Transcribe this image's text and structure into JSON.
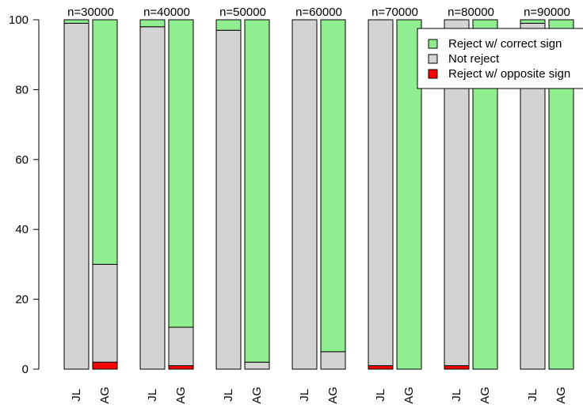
{
  "chart_data": {
    "type": "bar",
    "stacked": true,
    "title": "",
    "xlabel": "",
    "ylabel": "",
    "ylim": [
      0,
      100
    ],
    "yticks": [
      0,
      20,
      40,
      60,
      80,
      100
    ],
    "groups": [
      {
        "label": "n=30000",
        "bars": [
          {
            "label": "JL",
            "reject_opposite": 0,
            "not_reject": 99,
            "reject_correct": 1
          },
          {
            "label": "AG",
            "reject_opposite": 2,
            "not_reject": 28,
            "reject_correct": 70
          }
        ]
      },
      {
        "label": "n=40000",
        "bars": [
          {
            "label": "JL",
            "reject_opposite": 0,
            "not_reject": 98,
            "reject_correct": 2
          },
          {
            "label": "AG",
            "reject_opposite": 1,
            "not_reject": 11,
            "reject_correct": 88
          }
        ]
      },
      {
        "label": "n=50000",
        "bars": [
          {
            "label": "JL",
            "reject_opposite": 0,
            "not_reject": 97,
            "reject_correct": 3
          },
          {
            "label": "AG",
            "reject_opposite": 0,
            "not_reject": 2,
            "reject_correct": 98
          }
        ]
      },
      {
        "label": "n=60000",
        "bars": [
          {
            "label": "JL",
            "reject_opposite": 0,
            "not_reject": 100,
            "reject_correct": 0
          },
          {
            "label": "AG",
            "reject_opposite": 0,
            "not_reject": 5,
            "reject_correct": 95
          }
        ]
      },
      {
        "label": "n=70000",
        "bars": [
          {
            "label": "JL",
            "reject_opposite": 1,
            "not_reject": 99,
            "reject_correct": 0
          },
          {
            "label": "AG",
            "reject_opposite": 0,
            "not_reject": 0,
            "reject_correct": 100
          }
        ]
      },
      {
        "label": "n=80000",
        "bars": [
          {
            "label": "JL",
            "reject_opposite": 1,
            "not_reject": 99,
            "reject_correct": 0
          },
          {
            "label": "AG",
            "reject_opposite": 0,
            "not_reject": 0,
            "reject_correct": 100
          }
        ]
      },
      {
        "label": "n=90000",
        "bars": [
          {
            "label": "JL",
            "reject_opposite": 0,
            "not_reject": 99,
            "reject_correct": 1
          },
          {
            "label": "AG",
            "reject_opposite": 0,
            "not_reject": 0,
            "reject_correct": 100
          }
        ]
      }
    ],
    "series": [
      {
        "key": "reject_correct",
        "name": "Reject w/ correct sign",
        "color": "#90ee90"
      },
      {
        "key": "not_reject",
        "name": "Not reject",
        "color": "#d3d3d3"
      },
      {
        "key": "reject_opposite",
        "name": "Reject w/ opposite sign",
        "color": "#ff0000"
      }
    ],
    "legend_position": "top-right",
    "grid": false
  }
}
